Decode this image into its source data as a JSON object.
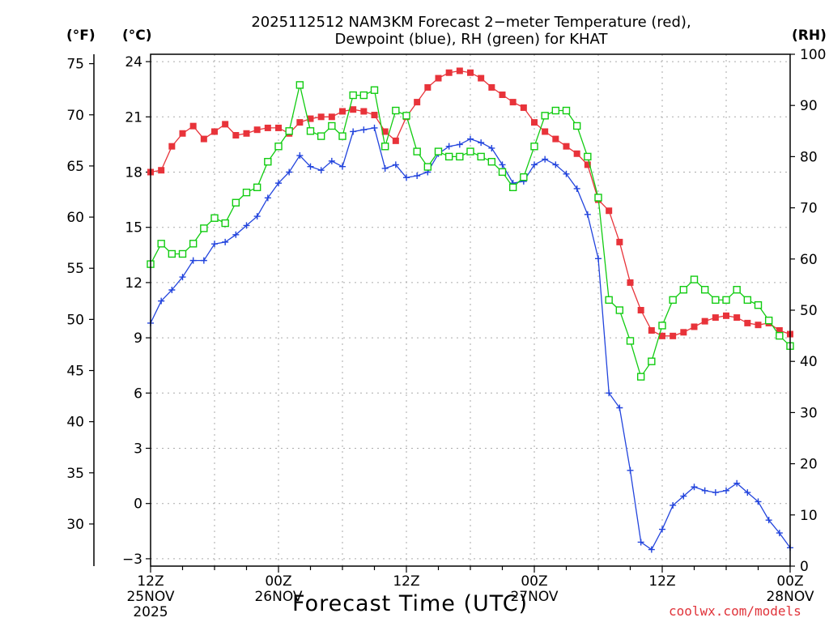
{
  "title_line1": "2025112512 NAM3KM Forecast 2−meter Temperature (red),",
  "title_line2": "Dewpoint (blue), RH (green) for KHAT",
  "units": {
    "fahrenheit": "(°F)",
    "celsius": "(°C)",
    "rh": "(RH)"
  },
  "xaxis_title": "Forecast Time (UTC)",
  "credit": "coolwx.com/models",
  "colors": {
    "temperature": "#e8333a",
    "dewpoint": "#2244dd",
    "rh": "#11cc11",
    "grid": "#aaaaaa"
  },
  "chart_data": {
    "type": "line",
    "x_unit": "forecast hour",
    "x": [
      0,
      1,
      2,
      3,
      4,
      5,
      6,
      7,
      8,
      9,
      10,
      11,
      12,
      13,
      14,
      15,
      16,
      17,
      18,
      19,
      20,
      21,
      22,
      23,
      24,
      25,
      26,
      27,
      28,
      29,
      30,
      31,
      32,
      33,
      34,
      35,
      36,
      37,
      38,
      39,
      40,
      41,
      42,
      43,
      44,
      45,
      46,
      47,
      48,
      49,
      50,
      51,
      52,
      53,
      54,
      55,
      56,
      57,
      58,
      59,
      60
    ],
    "xlim": [
      0,
      60
    ],
    "x_ticks": [
      {
        "hour": 0,
        "lines": [
          "12Z",
          "25NOV",
          "2025"
        ]
      },
      {
        "hour": 12,
        "lines": [
          "00Z",
          "26NOV"
        ]
      },
      {
        "hour": 24,
        "lines": [
          "12Z"
        ]
      },
      {
        "hour": 36,
        "lines": [
          "00Z",
          "27NOV"
        ]
      },
      {
        "hour": 48,
        "lines": [
          "12Z"
        ]
      },
      {
        "hour": 60,
        "lines": [
          "00Z",
          "28NOV"
        ]
      }
    ],
    "left_axis_f": {
      "label": "(°F)",
      "ticks": [
        30,
        35,
        40,
        45,
        50,
        55,
        60,
        65,
        70,
        75
      ]
    },
    "left_axis_c": {
      "label": "(°C)",
      "ylim": [
        -3.4,
        24.4
      ],
      "ticks": [
        -3,
        0,
        3,
        6,
        9,
        12,
        15,
        18,
        21,
        24
      ],
      "tick_labels": [
        "−3",
        "0",
        "3",
        "6",
        "9",
        "12",
        "15",
        "18",
        "21",
        "24"
      ]
    },
    "right_axis": {
      "label": "(RH)",
      "ylim": [
        0,
        100
      ],
      "ticks": [
        0,
        10,
        20,
        30,
        40,
        50,
        60,
        70,
        80,
        90,
        100
      ]
    },
    "series": [
      {
        "name": "Temperature",
        "unit": "C",
        "axis": "left",
        "color": "#e8333a",
        "marker": "filled-square",
        "values": [
          18.0,
          18.1,
          19.4,
          20.1,
          20.5,
          19.8,
          20.2,
          20.6,
          20.0,
          20.1,
          20.3,
          20.4,
          20.4,
          20.1,
          20.7,
          20.9,
          21.0,
          21.0,
          21.3,
          21.4,
          21.3,
          21.1,
          20.2,
          19.7,
          21.0,
          21.8,
          22.6,
          23.1,
          23.4,
          23.5,
          23.4,
          23.1,
          22.6,
          22.2,
          21.8,
          21.5,
          20.7,
          20.2,
          19.8,
          19.4,
          19.0,
          18.4,
          16.5,
          15.9,
          14.2,
          12.0,
          10.5,
          9.4,
          9.1,
          9.1,
          9.3,
          9.6,
          9.9,
          10.1,
          10.2,
          10.1,
          9.8,
          9.7,
          9.8,
          9.4,
          9.2
        ]
      },
      {
        "name": "Dewpoint",
        "unit": "C",
        "axis": "left",
        "color": "#2244dd",
        "marker": "plus",
        "values": [
          9.8,
          11.0,
          11.6,
          12.3,
          13.2,
          13.2,
          14.1,
          14.2,
          14.6,
          15.1,
          15.6,
          16.6,
          17.4,
          18.0,
          18.9,
          18.3,
          18.1,
          18.6,
          18.3,
          20.2,
          20.3,
          20.4,
          18.2,
          18.4,
          17.7,
          17.8,
          18.0,
          19.0,
          19.4,
          19.5,
          19.8,
          19.6,
          19.3,
          18.4,
          17.4,
          17.5,
          18.4,
          18.7,
          18.4,
          17.9,
          17.1,
          15.7,
          13.3,
          6.0,
          5.2,
          1.8,
          -2.1,
          -2.5,
          -1.4,
          -0.1,
          0.4,
          0.9,
          0.7,
          0.6,
          0.7,
          1.1,
          0.6,
          0.1,
          -0.9,
          -1.6,
          -2.4
        ]
      },
      {
        "name": "RH",
        "unit": "%",
        "axis": "right",
        "color": "#11cc11",
        "marker": "open-square",
        "values": [
          59,
          63,
          61,
          61,
          63,
          66,
          68,
          67,
          71,
          73,
          74,
          79,
          82,
          85,
          94,
          85,
          84,
          86,
          84,
          92,
          92,
          93,
          82,
          89,
          88,
          81,
          78,
          81,
          80,
          80,
          81,
          80,
          79,
          77,
          74,
          76,
          82,
          88,
          89,
          89,
          86,
          80,
          72,
          52,
          50,
          44,
          37,
          40,
          47,
          52,
          54,
          56,
          54,
          52,
          52,
          54,
          52,
          51,
          48,
          45,
          43
        ]
      }
    ]
  }
}
